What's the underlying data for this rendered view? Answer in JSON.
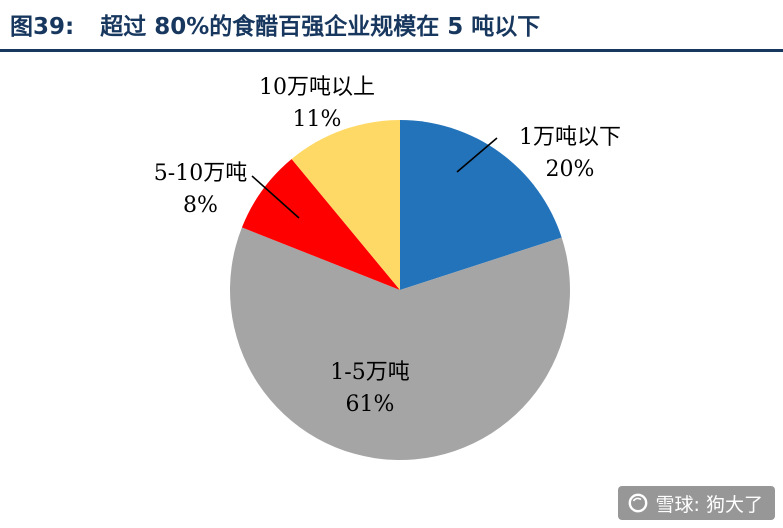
{
  "header": {
    "figure_no": "图39:",
    "title": "超过 80%的食醋百强企业规模在 5 吨以下"
  },
  "chart_data": {
    "type": "pie",
    "title": "超过80%的食醋百强企业规模在5吨以下",
    "start_angle": "top",
    "direction": "clockwise",
    "legend_position": "none",
    "slices": [
      {
        "label": "1万吨以下",
        "value": 20,
        "pct": "20%",
        "color": "#2373BB"
      },
      {
        "label": "1-5万吨",
        "value": 61,
        "pct": "61%",
        "color": "#A5A5A5"
      },
      {
        "label": "5-10万吨",
        "value": 8,
        "pct": "8%",
        "color": "#FF0000"
      },
      {
        "label": "10万吨以上",
        "value": 11,
        "pct": "11%",
        "color": "#FFD966"
      }
    ]
  },
  "watermark": {
    "text": "雪球: 狗大了"
  }
}
